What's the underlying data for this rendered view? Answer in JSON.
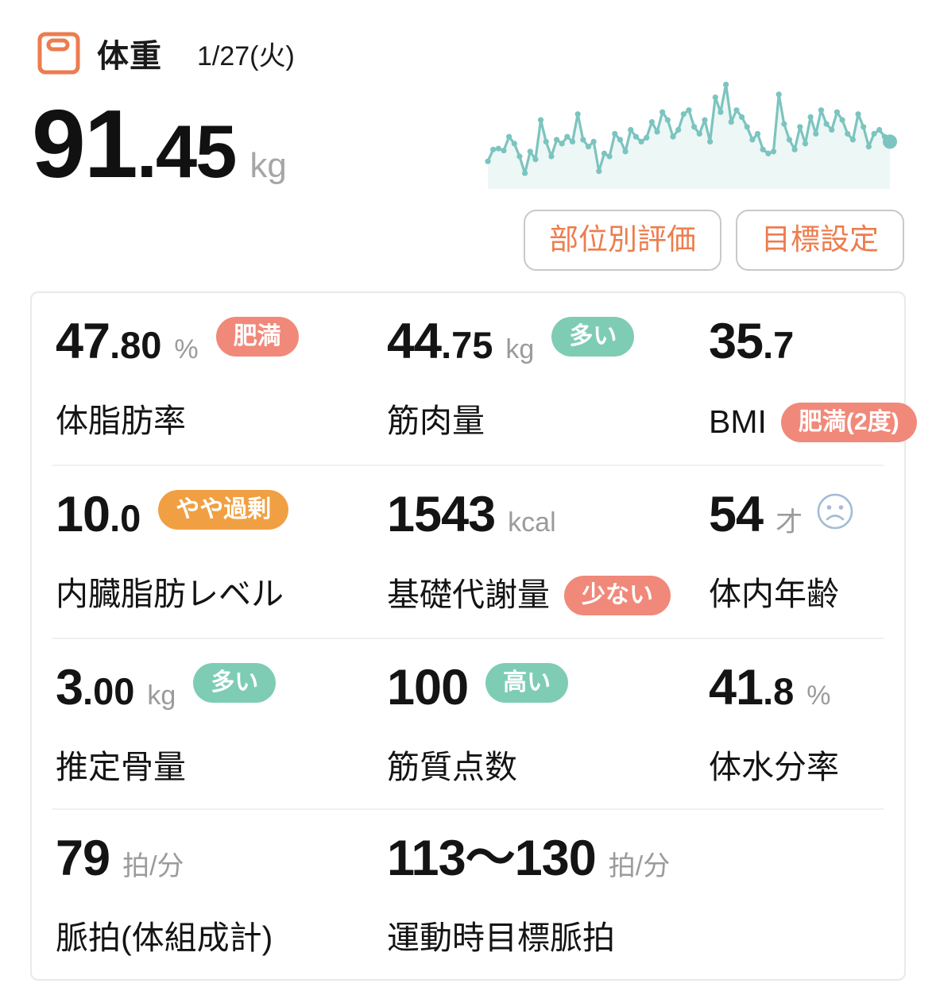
{
  "header": {
    "title": "体重",
    "date": "1/27(火)"
  },
  "weight": {
    "int": "91",
    "dec": ".45",
    "unit": "kg"
  },
  "buttons": {
    "part_evaluation": "部位別評価",
    "goal_setting": "目標設定"
  },
  "colors": {
    "accent_orange": "#ed7d4e",
    "badge_salmon": "#f0897a",
    "badge_teal": "#7fccb5",
    "badge_orange": "#f0a043",
    "sparkline_line": "#7cc4bf",
    "sparkline_fill": "rgba(124,196,191,0.14)",
    "unit_gray": "#9b9b9b",
    "sad_face_blue": "#a3bcd6"
  },
  "icons": {
    "header_icon": "body-weight-scale-icon",
    "body_age_icon": "sad-face-icon"
  },
  "chart_data": {
    "type": "line",
    "title": "",
    "series_name": "weight-trend-sparkline",
    "xlabel": "",
    "ylabel": "",
    "axes_visible": false,
    "grid": false,
    "legend": false,
    "marker": "dot",
    "last_point_emphasized": true,
    "ylim": [
      0,
      100
    ],
    "values": [
      20,
      32,
      33,
      31,
      45,
      38,
      25,
      8,
      30,
      22,
      62,
      40,
      25,
      42,
      38,
      45,
      40,
      68,
      42,
      35,
      40,
      10,
      28,
      25,
      48,
      42,
      30,
      52,
      45,
      40,
      44,
      60,
      50,
      70,
      62,
      45,
      52,
      68,
      72,
      55,
      48,
      62,
      40,
      85,
      70,
      98,
      60,
      72,
      65,
      55,
      42,
      48,
      32,
      28,
      30,
      88,
      58,
      42,
      32,
      55,
      38,
      65,
      48,
      72,
      58,
      52,
      70,
      62,
      48,
      42,
      68,
      55,
      35,
      48,
      52,
      45,
      40
    ]
  },
  "metrics": {
    "rows": [
      [
        {
          "name": "body-fat-percentage",
          "int": "47",
          "dec": ".80",
          "unit": "%",
          "badge": {
            "text": "肥満",
            "color": "salmon"
          },
          "label": "体脂肪率"
        },
        {
          "name": "muscle-mass",
          "int": "44",
          "dec": ".75",
          "unit": "kg",
          "badge": {
            "text": "多い",
            "color": "teal"
          },
          "label": "筋肉量"
        },
        {
          "name": "bmi",
          "int": "35",
          "dec": ".7",
          "label": "BMI",
          "label_badge": {
            "text": "肥満(2度)",
            "color": "salmon"
          }
        }
      ],
      [
        {
          "name": "visceral-fat-level",
          "int": "10",
          "dec": ".0",
          "badge": {
            "text": "やや過剰",
            "color": "orange"
          },
          "label": "内臓脂肪レベル"
        },
        {
          "name": "basal-metabolic-rate",
          "int": "1543",
          "unit": "kcal",
          "label": "基礎代謝量",
          "label_badge": {
            "text": "少ない",
            "color": "salmon"
          }
        },
        {
          "name": "body-age",
          "int": "54",
          "unit": "才",
          "icon": "sad-face",
          "label": "体内年齢"
        }
      ],
      [
        {
          "name": "estimated-bone-mass",
          "int": "3",
          "dec": ".00",
          "unit": "kg",
          "badge": {
            "text": "多い",
            "color": "teal"
          },
          "label": "推定骨量"
        },
        {
          "name": "muscle-quality-score",
          "int": "100",
          "badge": {
            "text": "高い",
            "color": "teal"
          },
          "label": "筋質点数"
        },
        {
          "name": "body-water-percentage",
          "int": "41",
          "dec": ".8",
          "unit": "%",
          "label": "体水分率"
        }
      ],
      [
        {
          "name": "pulse-body-composition",
          "int": "79",
          "unit": "拍/分",
          "label": "脈拍(体組成計)"
        },
        {
          "name": "exercise-target-pulse",
          "int": "113〜130",
          "unit": "拍/分",
          "label": "運動時目標脈拍",
          "span": 2
        }
      ]
    ]
  }
}
